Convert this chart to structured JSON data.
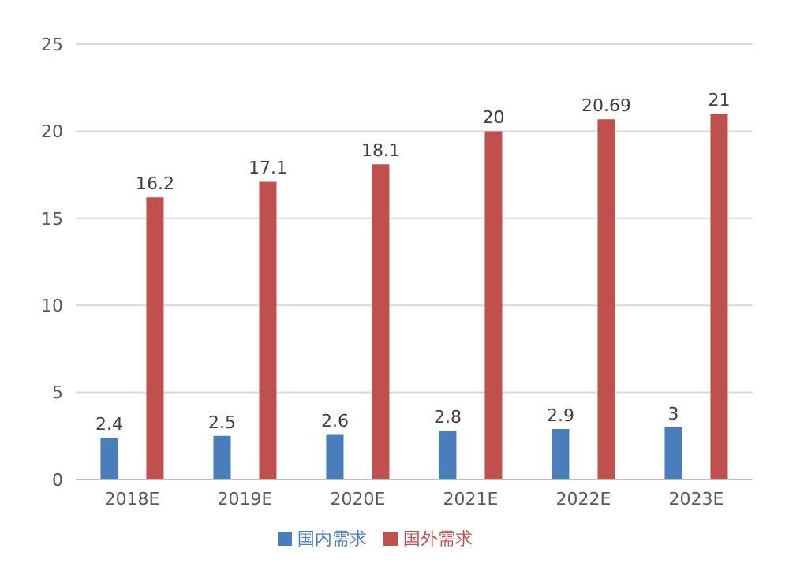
{
  "chart_data": {
    "type": "bar",
    "categories": [
      "2018E",
      "2019E",
      "2020E",
      "2021E",
      "2022E",
      "2023E"
    ],
    "series": [
      {
        "name": "国内需求",
        "color": "#4a7ebb",
        "values": [
          2.4,
          2.5,
          2.6,
          2.8,
          2.9,
          3
        ]
      },
      {
        "name": "国外需求",
        "color": "#c0504d",
        "values": [
          16.2,
          17.1,
          18.1,
          20,
          20.69,
          21
        ]
      }
    ],
    "ylim": [
      0,
      25
    ],
    "yticks": [
      0,
      5,
      10,
      15,
      20,
      25
    ],
    "grid": "y",
    "legend": "bottom",
    "data_labels": true
  }
}
